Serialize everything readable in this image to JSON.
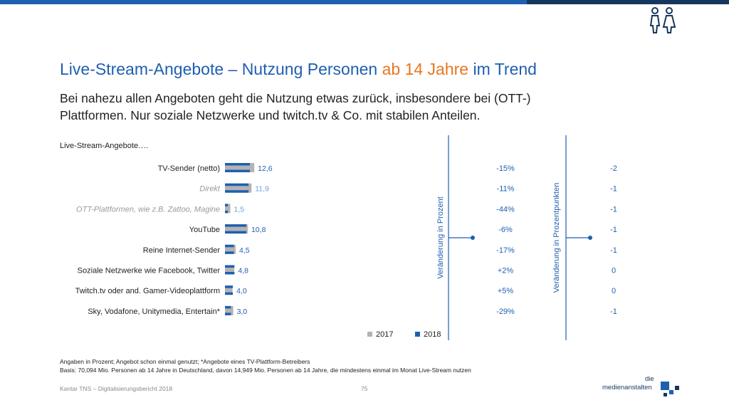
{
  "header": {
    "title_part1": "Live-Stream-Angebote – Nutzung Personen ",
    "title_highlight": "ab 14 Jahre",
    "title_part2": " im Trend",
    "subtitle": "Bei nahezu allen Angeboten geht die Nutzung etwas zurück, insbesondere bei (OTT-) Plattformen. Nur soziale Netzwerke und twitch.tv & Co. mit stabilen Anteilen.",
    "people_icon": "people-icon"
  },
  "colors": {
    "series_2017": "#b3b3b3",
    "series_2018": "#1f5fb0",
    "title": "#1f5fb0",
    "highlight": "#e87722"
  },
  "chart_data": {
    "type": "bar",
    "orientation": "horizontal",
    "caption": "Live-Stream-Angebote….",
    "categories": [
      "TV-Sender (netto)",
      "Direkt",
      "OTT-Plattformen, wie z.B. Zattoo, Magine",
      "YouTube",
      "Reine Internet-Sender",
      "Soziale Netzwerke wie Facebook, Twitter",
      "Twitch.tv oder and. Gamer-Videoplattform",
      "Sky, Vodafone, Unitymedia, Entertain*"
    ],
    "dimmed": [
      false,
      true,
      true,
      false,
      false,
      false,
      false,
      false
    ],
    "series": [
      {
        "name": "2017",
        "values": [
          14.8,
          13.4,
          2.7,
          11.5,
          5.4,
          4.7,
          3.8,
          4.2
        ]
      },
      {
        "name": "2018",
        "values": [
          12.6,
          11.9,
          1.5,
          10.8,
          4.5,
          4.8,
          4.0,
          3.0
        ]
      }
    ],
    "value_labels": [
      "12,6",
      "11,9",
      "1,5",
      "10,8",
      "4,5",
      "4,8",
      "4,0",
      "3,0"
    ],
    "legend": "bottom",
    "change_percent": {
      "title": "Veränderung in Prozent",
      "values": [
        "-15%",
        "-11%",
        "-44%",
        "-6%",
        "-17%",
        "+2%",
        "+5%",
        "-29%"
      ]
    },
    "change_points": {
      "title": "Veränderung in Prozentpunkten",
      "values": [
        "-2",
        "-1",
        "-1",
        "-1",
        "-1",
        "0",
        "0",
        "-1"
      ]
    }
  },
  "footer": {
    "note1": "Angaben in Prozent; Angebot schon einmal genutzt; *Angebote eines TV-Plattform-Betreibers",
    "note2": "Basis: 70,094 Mio. Personen ab 14 Jahre in Deutschland, davon 14,949 Mio. Personen ab 14 Jahre, die mindestens einmal im Monat Live-Stream nutzen",
    "source": "Kantar TNS – Digitalisierungsbericht 2018",
    "page": "75",
    "logo_line1": "die",
    "logo_line2": "medienanstalten"
  }
}
